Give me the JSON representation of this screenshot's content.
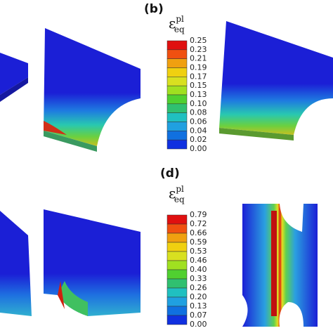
{
  "panels": [
    {
      "label": "(b)",
      "colorbar": {
        "symbol": "ε",
        "superscript": "pl",
        "subscript": "eq",
        "ticks": [
          "0.25",
          "0.23",
          "0.21",
          "0.19",
          "0.17",
          "0.15",
          "0.13",
          "0.10",
          "0.08",
          "0.06",
          "0.04",
          "0.02",
          "0.00"
        ]
      }
    },
    {
      "label": "(d)",
      "colorbar": {
        "symbol": "ε",
        "superscript": "pl",
        "subscript": "eq",
        "ticks": [
          "0.79",
          "0.72",
          "0.66",
          "0.59",
          "0.53",
          "0.46",
          "0.40",
          "0.33",
          "0.26",
          "0.20",
          "0.13",
          "0.07",
          "0.00"
        ]
      }
    }
  ]
}
